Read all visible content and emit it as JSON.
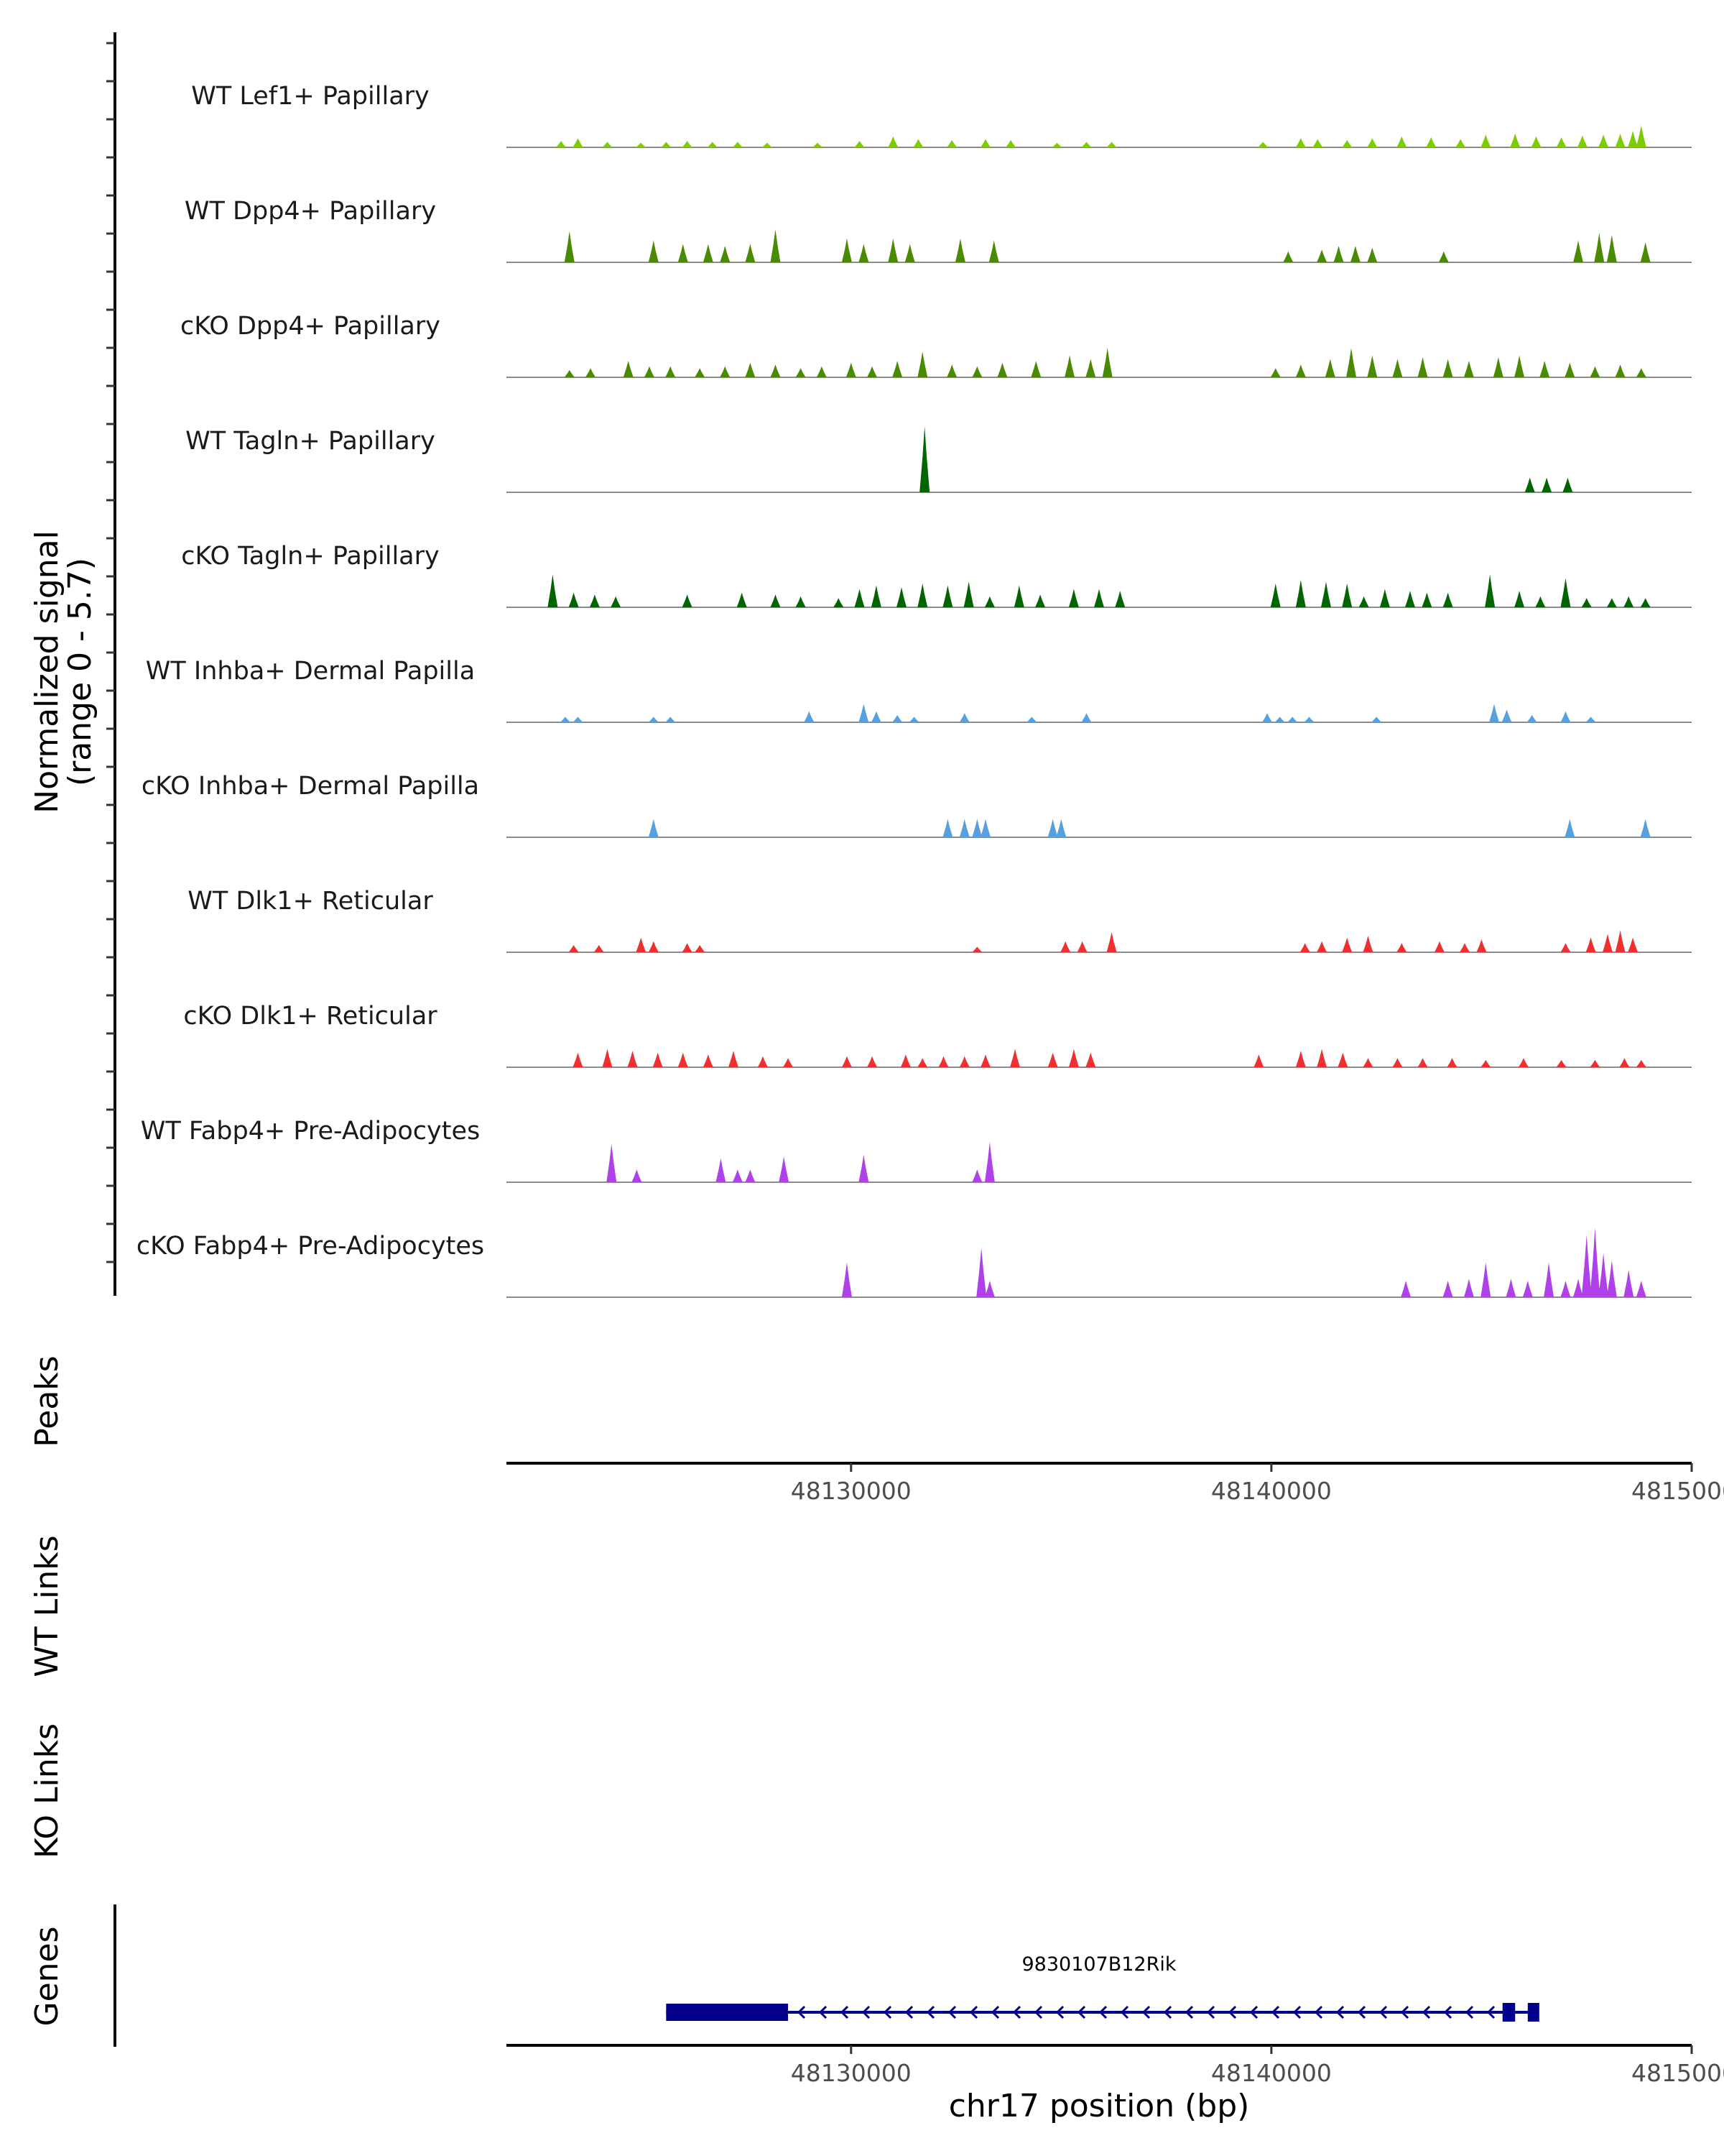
{
  "chart_data": {
    "type": "area",
    "title": "",
    "chromosome": "chr17",
    "xlabel": "chr17 position (bp)",
    "xlim": [
      48121800,
      48150000
    ],
    "xticks": [
      48130000,
      48140000,
      48150000
    ],
    "xtick_labels": [
      "48130000",
      "48140000",
      "48150000"
    ],
    "ylabel": "Normalized signal",
    "ylabel_range": "(range 0 - 5.7)",
    "ylim": [
      0,
      5.7
    ],
    "panel_labels": {
      "peaks": "Peaks",
      "wt_links": "WT Links",
      "ko_links": "KO Links",
      "genes": "Genes"
    },
    "series": [
      {
        "name": "WT Lef1+ Papillary",
        "color": "#7ccd00",
        "peaks": [
          [
            48123100,
            0.35
          ],
          [
            48123500,
            0.5
          ],
          [
            48124200,
            0.3
          ],
          [
            48125000,
            0.25
          ],
          [
            48125600,
            0.3
          ],
          [
            48126100,
            0.35
          ],
          [
            48126700,
            0.3
          ],
          [
            48127300,
            0.3
          ],
          [
            48128000,
            0.25
          ],
          [
            48129200,
            0.25
          ],
          [
            48130200,
            0.35
          ],
          [
            48131000,
            0.6
          ],
          [
            48131600,
            0.45
          ],
          [
            48132400,
            0.4
          ],
          [
            48133200,
            0.45
          ],
          [
            48133800,
            0.4
          ],
          [
            48134900,
            0.25
          ],
          [
            48135600,
            0.3
          ],
          [
            48136200,
            0.3
          ],
          [
            48139800,
            0.3
          ],
          [
            48140700,
            0.5
          ],
          [
            48141100,
            0.45
          ],
          [
            48141800,
            0.4
          ],
          [
            48142400,
            0.5
          ],
          [
            48143100,
            0.6
          ],
          [
            48143800,
            0.55
          ],
          [
            48144500,
            0.45
          ],
          [
            48145100,
            0.7
          ],
          [
            48145800,
            0.75
          ],
          [
            48146300,
            0.6
          ],
          [
            48146900,
            0.55
          ],
          [
            48147400,
            0.65
          ],
          [
            48147900,
            0.7
          ],
          [
            48148300,
            0.75
          ],
          [
            48148600,
            0.9
          ],
          [
            48148800,
            1.2
          ]
        ]
      },
      {
        "name": "WT Dpp4+ Papillary",
        "color": "#4a8a00",
        "peaks": [
          [
            48123300,
            1.7
          ],
          [
            48125300,
            1.2
          ],
          [
            48126000,
            1.0
          ],
          [
            48126600,
            1.0
          ],
          [
            48127000,
            0.9
          ],
          [
            48127600,
            1.0
          ],
          [
            48128200,
            1.8
          ],
          [
            48129900,
            1.3
          ],
          [
            48130300,
            1.0
          ],
          [
            48131000,
            1.3
          ],
          [
            48131400,
            1.0
          ],
          [
            48132600,
            1.3
          ],
          [
            48133400,
            1.2
          ],
          [
            48140400,
            0.6
          ],
          [
            48141200,
            0.7
          ],
          [
            48141600,
            0.9
          ],
          [
            48142000,
            0.9
          ],
          [
            48142400,
            0.8
          ],
          [
            48144100,
            0.6
          ],
          [
            48147300,
            1.2
          ],
          [
            48147800,
            1.6
          ],
          [
            48148100,
            1.5
          ],
          [
            48148900,
            1.1
          ]
        ]
      },
      {
        "name": "cKO Dpp4+ Papillary",
        "color": "#4a8a00",
        "peaks": [
          [
            48123300,
            0.4
          ],
          [
            48123800,
            0.5
          ],
          [
            48124700,
            0.9
          ],
          [
            48125200,
            0.6
          ],
          [
            48125700,
            0.6
          ],
          [
            48126400,
            0.5
          ],
          [
            48127000,
            0.6
          ],
          [
            48127600,
            0.8
          ],
          [
            48128200,
            0.7
          ],
          [
            48128800,
            0.5
          ],
          [
            48129300,
            0.6
          ],
          [
            48130000,
            0.8
          ],
          [
            48130500,
            0.6
          ],
          [
            48131100,
            0.9
          ],
          [
            48131700,
            1.4
          ],
          [
            48132400,
            0.7
          ],
          [
            48133000,
            0.6
          ],
          [
            48133600,
            0.8
          ],
          [
            48134400,
            0.9
          ],
          [
            48135200,
            1.2
          ],
          [
            48135700,
            1.0
          ],
          [
            48136100,
            1.6
          ],
          [
            48140100,
            0.5
          ],
          [
            48140700,
            0.7
          ],
          [
            48141400,
            1.0
          ],
          [
            48141900,
            1.6
          ],
          [
            48142400,
            1.2
          ],
          [
            48143000,
            1.0
          ],
          [
            48143600,
            1.1
          ],
          [
            48144200,
            1.0
          ],
          [
            48144700,
            0.9
          ],
          [
            48145400,
            1.1
          ],
          [
            48145900,
            1.2
          ],
          [
            48146500,
            0.9
          ],
          [
            48147100,
            0.8
          ],
          [
            48147700,
            0.6
          ],
          [
            48148300,
            0.7
          ],
          [
            48148800,
            0.5
          ]
        ]
      },
      {
        "name": "WT Tagln+ Papillary",
        "color": "#006400",
        "peaks": [
          [
            48131750,
            3.6
          ],
          [
            48146150,
            0.8
          ],
          [
            48146550,
            0.8
          ],
          [
            48147050,
            0.8
          ]
        ]
      },
      {
        "name": "cKO Tagln+ Papillary",
        "color": "#006400",
        "peaks": [
          [
            48122900,
            1.8
          ],
          [
            48123400,
            0.8
          ],
          [
            48123900,
            0.7
          ],
          [
            48124400,
            0.6
          ],
          [
            48126100,
            0.7
          ],
          [
            48127400,
            0.8
          ],
          [
            48128200,
            0.7
          ],
          [
            48128800,
            0.6
          ],
          [
            48129700,
            0.5
          ],
          [
            48130200,
            1.0
          ],
          [
            48130600,
            1.2
          ],
          [
            48131200,
            1.1
          ],
          [
            48131700,
            1.3
          ],
          [
            48132300,
            1.2
          ],
          [
            48132800,
            1.4
          ],
          [
            48133300,
            0.6
          ],
          [
            48134000,
            1.2
          ],
          [
            48134500,
            0.7
          ],
          [
            48135300,
            1.0
          ],
          [
            48135900,
            1.0
          ],
          [
            48136400,
            0.9
          ],
          [
            48140100,
            1.3
          ],
          [
            48140700,
            1.5
          ],
          [
            48141300,
            1.4
          ],
          [
            48141800,
            1.3
          ],
          [
            48142200,
            0.6
          ],
          [
            48142700,
            1.0
          ],
          [
            48143300,
            0.9
          ],
          [
            48143700,
            0.8
          ],
          [
            48144200,
            0.8
          ],
          [
            48145200,
            1.8
          ],
          [
            48145900,
            0.9
          ],
          [
            48146400,
            0.6
          ],
          [
            48147000,
            1.6
          ],
          [
            48147500,
            0.5
          ],
          [
            48148100,
            0.5
          ],
          [
            48148500,
            0.6
          ],
          [
            48148900,
            0.5
          ]
        ]
      },
      {
        "name": "WT Inhba+ Dermal Papilla",
        "color": "#56a0e0",
        "peaks": [
          [
            48123200,
            0.3
          ],
          [
            48123500,
            0.3
          ],
          [
            48125300,
            0.3
          ],
          [
            48125700,
            0.3
          ],
          [
            48129000,
            0.6
          ],
          [
            48130300,
            1.0
          ],
          [
            48130600,
            0.6
          ],
          [
            48131100,
            0.4
          ],
          [
            48131500,
            0.3
          ],
          [
            48132700,
            0.5
          ],
          [
            48134300,
            0.3
          ],
          [
            48135600,
            0.5
          ],
          [
            48139900,
            0.5
          ],
          [
            48140200,
            0.3
          ],
          [
            48140500,
            0.3
          ],
          [
            48140900,
            0.3
          ],
          [
            48142500,
            0.3
          ],
          [
            48145300,
            1.0
          ],
          [
            48145600,
            0.7
          ],
          [
            48146200,
            0.4
          ],
          [
            48147000,
            0.6
          ],
          [
            48147600,
            0.3
          ]
        ]
      },
      {
        "name": "cKO Inhba+ Dermal Papilla",
        "color": "#56a0e0",
        "peaks": [
          [
            48125300,
            1.0
          ],
          [
            48132300,
            1.0
          ],
          [
            48132700,
            1.0
          ],
          [
            48133000,
            1.0
          ],
          [
            48133200,
            1.0
          ],
          [
            48134800,
            1.0
          ],
          [
            48135000,
            1.0
          ],
          [
            48147100,
            1.0
          ],
          [
            48148900,
            1.0
          ]
        ]
      },
      {
        "name": "WT Dlk1+ Reticular",
        "color": "#f03030",
        "peaks": [
          [
            48123400,
            0.4
          ],
          [
            48124000,
            0.4
          ],
          [
            48125000,
            0.8
          ],
          [
            48125300,
            0.6
          ],
          [
            48126100,
            0.5
          ],
          [
            48126400,
            0.4
          ],
          [
            48133000,
            0.3
          ],
          [
            48135100,
            0.6
          ],
          [
            48135500,
            0.6
          ],
          [
            48136200,
            1.1
          ],
          [
            48140800,
            0.5
          ],
          [
            48141200,
            0.6
          ],
          [
            48141800,
            0.8
          ],
          [
            48142300,
            0.9
          ],
          [
            48143100,
            0.5
          ],
          [
            48144000,
            0.6
          ],
          [
            48144600,
            0.5
          ],
          [
            48145000,
            0.7
          ],
          [
            48147000,
            0.5
          ],
          [
            48147600,
            0.8
          ],
          [
            48148000,
            1.0
          ],
          [
            48148300,
            1.2
          ],
          [
            48148600,
            0.8
          ]
        ]
      },
      {
        "name": "cKO Dlk1+ Reticular",
        "color": "#f03030",
        "peaks": [
          [
            48123500,
            0.8
          ],
          [
            48124200,
            1.0
          ],
          [
            48124800,
            0.9
          ],
          [
            48125400,
            0.8
          ],
          [
            48126000,
            0.8
          ],
          [
            48126600,
            0.7
          ],
          [
            48127200,
            0.9
          ],
          [
            48127900,
            0.6
          ],
          [
            48128500,
            0.5
          ],
          [
            48129900,
            0.6
          ],
          [
            48130500,
            0.6
          ],
          [
            48131300,
            0.7
          ],
          [
            48131700,
            0.5
          ],
          [
            48132200,
            0.6
          ],
          [
            48132700,
            0.6
          ],
          [
            48133200,
            0.7
          ],
          [
            48133900,
            1.0
          ],
          [
            48134800,
            0.8
          ],
          [
            48135300,
            1.0
          ],
          [
            48135700,
            0.8
          ],
          [
            48139700,
            0.7
          ],
          [
            48140700,
            0.9
          ],
          [
            48141200,
            1.0
          ],
          [
            48141700,
            0.8
          ],
          [
            48142300,
            0.5
          ],
          [
            48143000,
            0.5
          ],
          [
            48143600,
            0.5
          ],
          [
            48144300,
            0.5
          ],
          [
            48145100,
            0.4
          ],
          [
            48146000,
            0.5
          ],
          [
            48146900,
            0.4
          ],
          [
            48147700,
            0.4
          ],
          [
            48148400,
            0.5
          ],
          [
            48148800,
            0.4
          ]
        ]
      },
      {
        "name": "WT Fabp4+ Pre-Adipocytes",
        "color": "#b040e8",
        "peaks": [
          [
            48124300,
            2.1
          ],
          [
            48124900,
            0.7
          ],
          [
            48126900,
            1.3
          ],
          [
            48127300,
            0.7
          ],
          [
            48127600,
            0.7
          ],
          [
            48128400,
            1.4
          ],
          [
            48130300,
            1.5
          ],
          [
            48133000,
            0.7
          ],
          [
            48133300,
            2.2
          ]
        ]
      },
      {
        "name": "cKO Fabp4+ Pre-Adipocytes",
        "color": "#b040e8",
        "peaks": [
          [
            48129900,
            1.9
          ],
          [
            48133100,
            2.7
          ],
          [
            48133300,
            0.9
          ],
          [
            48143200,
            0.9
          ],
          [
            48144200,
            0.9
          ],
          [
            48144700,
            1.0
          ],
          [
            48145100,
            1.9
          ],
          [
            48145700,
            1.0
          ],
          [
            48146100,
            0.9
          ],
          [
            48146600,
            1.9
          ],
          [
            48147000,
            0.9
          ],
          [
            48147300,
            1.0
          ],
          [
            48147500,
            3.4
          ],
          [
            48147700,
            3.8
          ],
          [
            48147900,
            2.4
          ],
          [
            48148100,
            2.0
          ],
          [
            48148500,
            1.5
          ],
          [
            48148800,
            0.9
          ]
        ]
      }
    ],
    "gene": {
      "name": "9830107B12Rik",
      "strand": "-",
      "start": 48125600,
      "end": 48146300,
      "exons": [
        [
          48125600,
          48128500
        ],
        [
          48145500,
          48145800
        ],
        [
          48146100,
          48146300
        ]
      ]
    }
  }
}
